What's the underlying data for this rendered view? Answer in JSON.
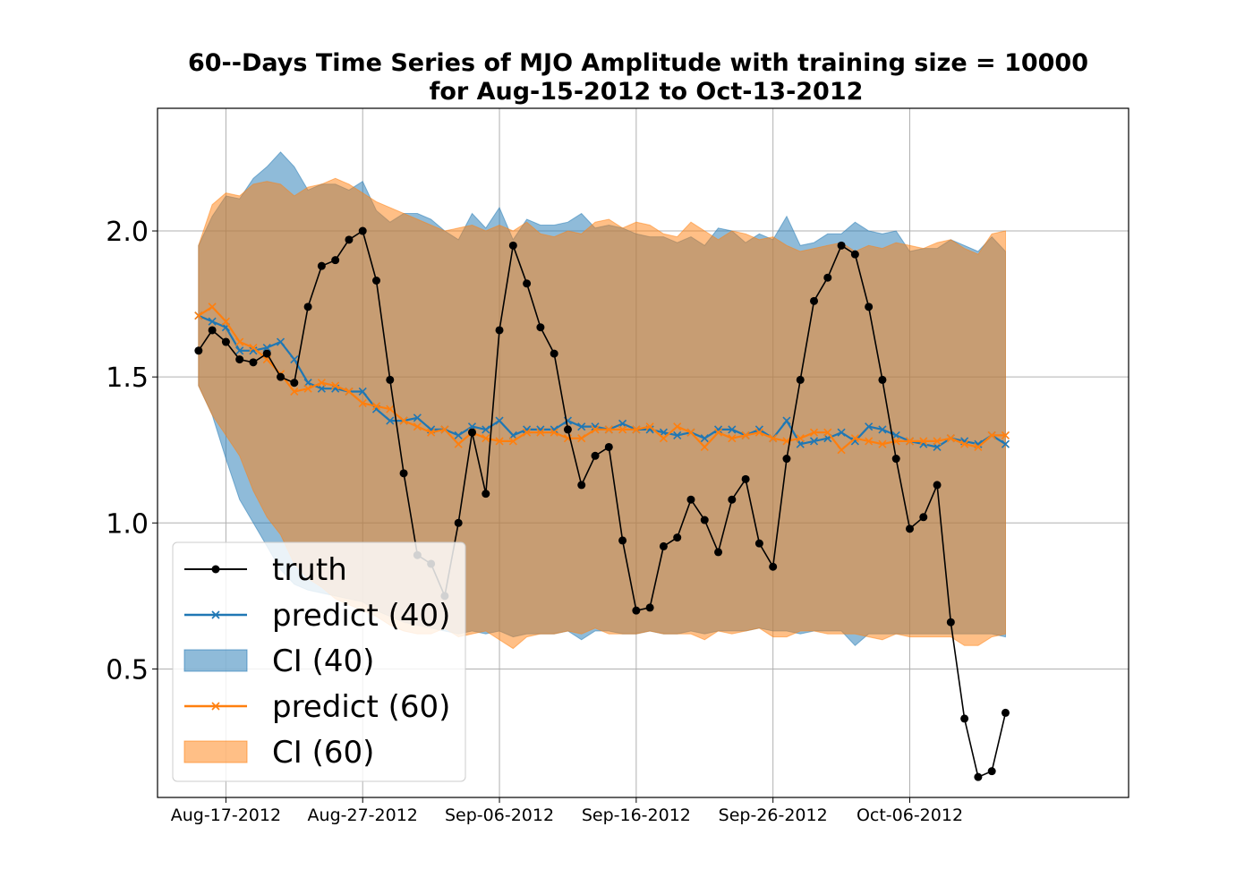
{
  "chart_data": {
    "type": "line",
    "title_line1": "60--Days Time Series of MJO Amplitude with training size = 10000",
    "title_line2": "for Aug-15-2012 to Oct-13-2012",
    "xlabel": "",
    "ylabel": "",
    "x_start": "2012-08-15",
    "x_end": "2012-10-13",
    "xlim": [
      "2012-08-12",
      "2012-10-22"
    ],
    "ylim": [
      0.06,
      2.42
    ],
    "grid": true,
    "legend_placement": "lower-left",
    "xticks": [
      {
        "date": "2012-08-17",
        "label": "Aug-17-2012"
      },
      {
        "date": "2012-08-27",
        "label": "Aug-27-2012"
      },
      {
        "date": "2012-09-06",
        "label": "Sep-06-2012"
      },
      {
        "date": "2012-09-16",
        "label": "Sep-16-2012"
      },
      {
        "date": "2012-09-26",
        "label": "Sep-26-2012"
      },
      {
        "date": "2012-10-06",
        "label": "Oct-06-2012"
      }
    ],
    "yticks": [
      {
        "value": 0.5,
        "label": "0.5"
      },
      {
        "value": 1.0,
        "label": "1.0"
      },
      {
        "value": 1.5,
        "label": "1.5"
      },
      {
        "value": 2.0,
        "label": "2.0"
      }
    ],
    "colors": {
      "truth": "#000000",
      "c40": "#1f77b4",
      "c60": "#ff7f0e",
      "grid": "#b0b0b0"
    },
    "series": [
      {
        "name": "truth",
        "values": [
          1.59,
          1.66,
          1.62,
          1.56,
          1.55,
          1.58,
          1.5,
          1.48,
          1.74,
          1.88,
          1.9,
          1.97,
          2.0,
          1.83,
          1.49,
          1.17,
          0.89,
          0.86,
          0.75,
          1.0,
          1.31,
          1.1,
          1.66,
          1.95,
          1.82,
          1.67,
          1.58,
          1.32,
          1.13,
          1.23,
          1.26,
          0.94,
          0.7,
          0.71,
          0.92,
          0.95,
          1.08,
          1.01,
          0.9,
          1.08,
          1.15,
          0.93,
          0.85,
          1.22,
          1.49,
          1.76,
          1.84,
          1.95,
          1.92,
          1.74,
          1.49,
          1.22,
          0.98,
          1.02,
          1.13,
          0.66,
          0.33,
          0.13,
          0.15,
          0.35
        ]
      },
      {
        "name": "predict (40)",
        "values": [
          1.71,
          1.69,
          1.67,
          1.59,
          1.59,
          1.6,
          1.62,
          1.56,
          1.48,
          1.46,
          1.46,
          1.45,
          1.45,
          1.39,
          1.35,
          1.35,
          1.36,
          1.32,
          1.32,
          1.3,
          1.33,
          1.32,
          1.35,
          1.3,
          1.32,
          1.32,
          1.32,
          1.35,
          1.33,
          1.33,
          1.32,
          1.34,
          1.32,
          1.32,
          1.31,
          1.3,
          1.31,
          1.29,
          1.32,
          1.32,
          1.3,
          1.32,
          1.29,
          1.35,
          1.27,
          1.28,
          1.29,
          1.31,
          1.28,
          1.33,
          1.32,
          1.3,
          1.28,
          1.27,
          1.26,
          1.29,
          1.28,
          1.27,
          1.3,
          1.27
        ]
      },
      {
        "name": "CI (40)",
        "lower": [
          1.47,
          1.37,
          1.22,
          1.08,
          1.0,
          0.92,
          0.84,
          0.79,
          0.77,
          0.76,
          0.75,
          0.74,
          0.73,
          0.7,
          0.68,
          0.66,
          0.65,
          0.64,
          0.63,
          0.62,
          0.63,
          0.62,
          0.63,
          0.61,
          0.62,
          0.62,
          0.62,
          0.63,
          0.6,
          0.63,
          0.63,
          0.62,
          0.62,
          0.63,
          0.62,
          0.62,
          0.63,
          0.62,
          0.63,
          0.63,
          0.63,
          0.64,
          0.63,
          0.63,
          0.62,
          0.63,
          0.63,
          0.63,
          0.58,
          0.62,
          0.62,
          0.62,
          0.62,
          0.62,
          0.62,
          0.62,
          0.62,
          0.62,
          0.62,
          0.61
        ],
        "upper": [
          1.95,
          2.05,
          2.12,
          2.11,
          2.18,
          2.22,
          2.27,
          2.22,
          2.14,
          2.16,
          2.16,
          2.14,
          2.17,
          2.07,
          2.03,
          2.06,
          2.06,
          2.04,
          2.0,
          1.97,
          2.06,
          2.01,
          2.08,
          1.97,
          2.04,
          2.02,
          2.02,
          2.03,
          2.06,
          2.01,
          2.02,
          2.01,
          1.99,
          1.98,
          1.98,
          1.96,
          1.98,
          1.95,
          2.01,
          2.0,
          1.96,
          1.99,
          1.97,
          2.05,
          1.95,
          1.96,
          1.99,
          1.99,
          2.03,
          2.0,
          1.99,
          2.0,
          1.93,
          1.94,
          1.94,
          1.97,
          1.95,
          1.93,
          1.98,
          1.93
        ]
      },
      {
        "name": "predict (60)",
        "values": [
          1.71,
          1.74,
          1.69,
          1.62,
          1.6,
          1.56,
          1.51,
          1.45,
          1.46,
          1.48,
          1.47,
          1.45,
          1.41,
          1.4,
          1.39,
          1.35,
          1.33,
          1.31,
          1.32,
          1.27,
          1.31,
          1.29,
          1.28,
          1.28,
          1.31,
          1.31,
          1.31,
          1.29,
          1.29,
          1.32,
          1.32,
          1.32,
          1.32,
          1.33,
          1.29,
          1.33,
          1.31,
          1.26,
          1.31,
          1.29,
          1.3,
          1.31,
          1.29,
          1.28,
          1.29,
          1.31,
          1.31,
          1.25,
          1.29,
          1.28,
          1.27,
          1.28,
          1.28,
          1.28,
          1.28,
          1.29,
          1.27,
          1.26,
          1.3,
          1.3
        ]
      },
      {
        "name": "CI (60)",
        "lower": [
          1.47,
          1.37,
          1.3,
          1.23,
          1.11,
          1.02,
          0.96,
          0.86,
          0.81,
          0.78,
          0.74,
          0.72,
          0.7,
          0.68,
          0.65,
          0.63,
          0.62,
          0.62,
          0.64,
          0.61,
          0.62,
          0.63,
          0.6,
          0.57,
          0.61,
          0.62,
          0.62,
          0.63,
          0.62,
          0.64,
          0.62,
          0.62,
          0.62,
          0.63,
          0.62,
          0.62,
          0.62,
          0.6,
          0.63,
          0.62,
          0.63,
          0.64,
          0.61,
          0.61,
          0.63,
          0.63,
          0.62,
          0.62,
          0.62,
          0.61,
          0.6,
          0.62,
          0.61,
          0.61,
          0.61,
          0.61,
          0.58,
          0.58,
          0.61,
          0.62
        ],
        "upper": [
          1.95,
          2.09,
          2.13,
          2.12,
          2.16,
          2.17,
          2.16,
          2.12,
          2.15,
          2.16,
          2.18,
          2.16,
          2.13,
          2.1,
          2.08,
          2.06,
          2.04,
          2.02,
          2.0,
          2.01,
          2.02,
          2.0,
          2.02,
          2.0,
          2.03,
          1.99,
          1.98,
          2.0,
          1.99,
          2.03,
          2.04,
          2.01,
          2.03,
          2.02,
          1.99,
          1.98,
          2.03,
          2.0,
          1.97,
          2.0,
          1.99,
          1.97,
          1.98,
          1.95,
          1.93,
          1.94,
          1.95,
          1.96,
          1.93,
          1.95,
          1.94,
          1.96,
          1.95,
          1.94,
          1.96,
          1.97,
          1.94,
          1.92,
          1.99,
          2.0
        ]
      }
    ],
    "legend": [
      {
        "label": "truth",
        "kind": "line-dot"
      },
      {
        "label": "predict (40)",
        "kind": "line-x-40"
      },
      {
        "label": "CI (40)",
        "kind": "patch-40"
      },
      {
        "label": "predict (60)",
        "kind": "line-x-60"
      },
      {
        "label": "CI (60)",
        "kind": "patch-60"
      }
    ]
  }
}
